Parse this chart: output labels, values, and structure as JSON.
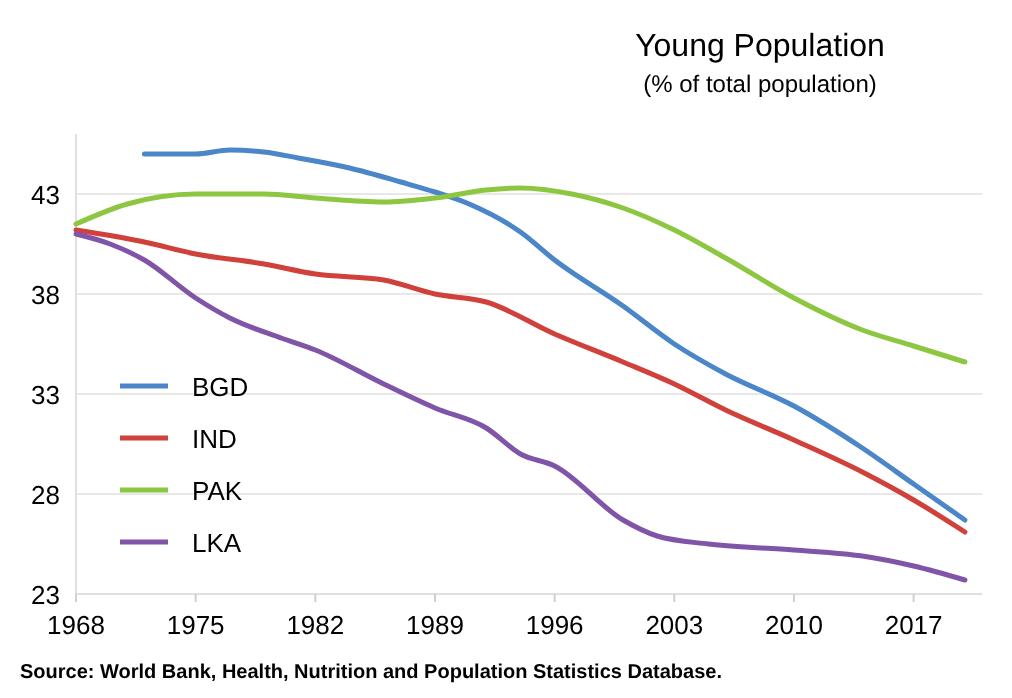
{
  "chart_data": {
    "type": "line",
    "title": "Young Population",
    "subtitle": "(% of total population)",
    "annotations": [
      "Source: World Bank, Health, Nutrition and Population Statistics Database."
    ],
    "xlim": [
      1968,
      2021
    ],
    "xticks": [
      1968,
      1975,
      1982,
      1989,
      1996,
      2003,
      2010,
      2017
    ],
    "ylim": [
      23,
      46
    ],
    "yticks": [
      23,
      28,
      33,
      38,
      43
    ],
    "grid": "y",
    "legend": "bottom left",
    "series": [
      {
        "name": "BGD",
        "color": "#4a86c8",
        "x": [
          1972,
          1975,
          1977,
          1979,
          1981,
          1984,
          1987,
          1989,
          1991,
          1994,
          1996,
          2000,
          2003,
          2006,
          2010,
          2014,
          2017,
          2020
        ],
        "values": [
          45.0,
          45.0,
          45.2,
          45.1,
          44.8,
          44.3,
          43.6,
          43.1,
          42.5,
          41.1,
          39.7,
          37.4,
          35.5,
          34.0,
          32.4,
          30.3,
          28.5,
          26.7
        ]
      },
      {
        "name": "IND",
        "color": "#d0413c",
        "x": [
          1968,
          1972,
          1975,
          1979,
          1982,
          1986,
          1989,
          1992,
          1996,
          2000,
          2003,
          2006,
          2010,
          2014,
          2017,
          2020
        ],
        "values": [
          41.2,
          40.6,
          40.0,
          39.5,
          39.0,
          38.7,
          38.0,
          37.6,
          36.0,
          34.6,
          33.5,
          32.2,
          30.7,
          29.1,
          27.7,
          26.1
        ]
      },
      {
        "name": "PAK",
        "color": "#8dc641",
        "x": [
          1968,
          1971,
          1975,
          1979,
          1982,
          1986,
          1989,
          1992,
          1994,
          1997,
          2000,
          2003,
          2006,
          2010,
          2014,
          2017,
          2020
        ],
        "values": [
          41.5,
          42.5,
          43.0,
          43.0,
          42.8,
          42.6,
          42.8,
          43.2,
          43.3,
          43.0,
          42.3,
          41.2,
          39.8,
          37.8,
          36.2,
          35.4,
          34.6
        ]
      },
      {
        "name": "LKA",
        "color": "#8055a8",
        "x": [
          1968,
          1970,
          1972,
          1975,
          1977,
          1980,
          1982,
          1986,
          1989,
          1992,
          1994,
          1996,
          2000,
          2002,
          2005,
          2010,
          2014,
          2017,
          2020
        ],
        "values": [
          41.0,
          40.5,
          39.7,
          37.8,
          36.8,
          35.8,
          35.2,
          33.5,
          32.3,
          31.3,
          30.0,
          29.4,
          26.7,
          25.9,
          25.5,
          25.2,
          24.9,
          24.4,
          23.7
        ]
      }
    ]
  }
}
